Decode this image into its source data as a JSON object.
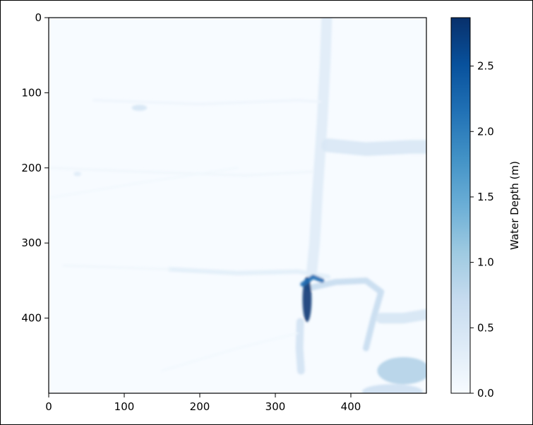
{
  "chart_data": {
    "type": "heatmap",
    "title": "",
    "xlabel": "",
    "ylabel": "",
    "colormap": "Blues",
    "colormap_stops": [
      "#f7fbff",
      "#deebf7",
      "#c6dbef",
      "#9ecae1",
      "#6baed6",
      "#4292c6",
      "#2171b5",
      "#08519c",
      "#08306b"
    ],
    "xlim": [
      0,
      500
    ],
    "ylim": [
      500,
      0
    ],
    "x_ticks": [
      0,
      100,
      200,
      300,
      400
    ],
    "x_tick_labels": [
      "0",
      "100",
      "200",
      "300",
      "400"
    ],
    "y_ticks": [
      0,
      100,
      200,
      300,
      400
    ],
    "y_tick_labels": [
      "0",
      "100",
      "200",
      "300",
      "400"
    ],
    "colorbar": {
      "label": "Water Depth (m)",
      "range": [
        0.0,
        2.87
      ],
      "ticks": [
        0.0,
        0.5,
        1.0,
        1.5,
        2.0,
        2.5
      ],
      "tick_labels": [
        "0.0",
        "0.5",
        "1.0",
        "1.5",
        "2.0",
        "2.5"
      ]
    },
    "features": [
      {
        "kind": "channel",
        "name": "north-south flow path",
        "points": [
          [
            368,
            0
          ],
          [
            366,
            60
          ],
          [
            362,
            140
          ],
          [
            356,
            230
          ],
          [
            352,
            300
          ],
          [
            348,
            340
          ]
        ],
        "width": 14,
        "depth": 0.35
      },
      {
        "kind": "channel",
        "name": "east branch",
        "points": [
          [
            370,
            170
          ],
          [
            420,
            175
          ],
          [
            480,
            172
          ],
          [
            500,
            172
          ]
        ],
        "width": 18,
        "depth": 0.45
      },
      {
        "kind": "channel",
        "name": "ridge at y=340",
        "points": [
          [
            160,
            335
          ],
          [
            250,
            340
          ],
          [
            330,
            338
          ],
          [
            370,
            345
          ]
        ],
        "width": 6,
        "depth": 0.3
      },
      {
        "kind": "channel",
        "name": "arc over block",
        "points": [
          [
            345,
            360
          ],
          [
            380,
            352
          ],
          [
            420,
            350
          ],
          [
            440,
            365
          ],
          [
            430,
            400
          ],
          [
            420,
            440
          ]
        ],
        "width": 8,
        "depth": 0.7
      },
      {
        "kind": "channel",
        "name": "lower east flow",
        "points": [
          [
            440,
            400
          ],
          [
            470,
            400
          ],
          [
            500,
            395
          ]
        ],
        "width": 14,
        "depth": 0.5
      },
      {
        "kind": "pool",
        "name": "deepest pool",
        "x": 342,
        "y": 375,
        "rx": 6,
        "ry": 30,
        "depth": 2.8
      },
      {
        "kind": "channel",
        "name": "deep outlet",
        "points": [
          [
            336,
            355
          ],
          [
            350,
            345
          ],
          [
            362,
            350
          ]
        ],
        "width": 6,
        "depth": 2.2
      },
      {
        "kind": "channel",
        "name": "drain south",
        "points": [
          [
            333,
            405
          ],
          [
            332,
            440
          ],
          [
            334,
            470
          ]
        ],
        "width": 10,
        "depth": 0.55
      },
      {
        "kind": "pool",
        "name": "south-east pond",
        "x": 470,
        "y": 470,
        "rx": 35,
        "ry": 18,
        "depth": 0.9
      },
      {
        "kind": "pool",
        "name": "south-east corner",
        "x": 455,
        "y": 498,
        "rx": 40,
        "ry": 10,
        "depth": 0.6
      },
      {
        "kind": "channel",
        "name": "faint upper road",
        "points": [
          [
            60,
            110
          ],
          [
            200,
            115
          ],
          [
            330,
            110
          ],
          [
            360,
            112
          ]
        ],
        "width": 3,
        "depth": 0.15
      },
      {
        "kind": "channel",
        "name": "faint mid road",
        "points": [
          [
            0,
            200
          ],
          [
            120,
            205
          ],
          [
            260,
            210
          ],
          [
            350,
            205
          ]
        ],
        "width": 3,
        "depth": 0.12
      },
      {
        "kind": "channel",
        "name": "faint diagonal",
        "points": [
          [
            0,
            240
          ],
          [
            120,
            220
          ],
          [
            250,
            200
          ]
        ],
        "width": 2,
        "depth": 0.1
      },
      {
        "kind": "channel",
        "name": "faint lower road",
        "points": [
          [
            20,
            330
          ],
          [
            160,
            335
          ]
        ],
        "width": 3,
        "depth": 0.12
      },
      {
        "kind": "channel",
        "name": "faint lower diagonal",
        "points": [
          [
            150,
            470
          ],
          [
            250,
            440
          ],
          [
            330,
            420
          ]
        ],
        "width": 2,
        "depth": 0.1
      },
      {
        "kind": "pool",
        "name": "small puddle",
        "x": 120,
        "y": 120,
        "rx": 10,
        "ry": 4,
        "depth": 0.5
      },
      {
        "kind": "pool",
        "name": "small puddle 2",
        "x": 38,
        "y": 208,
        "rx": 5,
        "ry": 3,
        "depth": 0.35
      }
    ]
  }
}
